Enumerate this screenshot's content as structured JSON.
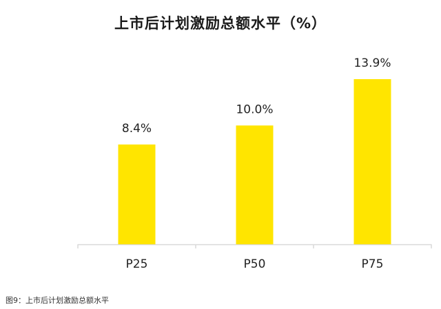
{
  "title": "上市后计划激励总额水平（%）",
  "caption": "图9：上市后计划激励总额水平",
  "colors": {
    "bar": "#FFE500",
    "axis": "#D9D9D9",
    "text": "#222222"
  },
  "chart_data": {
    "type": "bar",
    "title": "上市后计划激励总额水平（%）",
    "categories": [
      "P25",
      "P50",
      "P75"
    ],
    "values": [
      8.4,
      10.0,
      13.9
    ],
    "data_labels": [
      "8.4%",
      "10.0%",
      "13.9%"
    ],
    "xlabel": "",
    "ylabel": "",
    "ylim": [
      0,
      16
    ],
    "grid": false,
    "legend": "none"
  }
}
